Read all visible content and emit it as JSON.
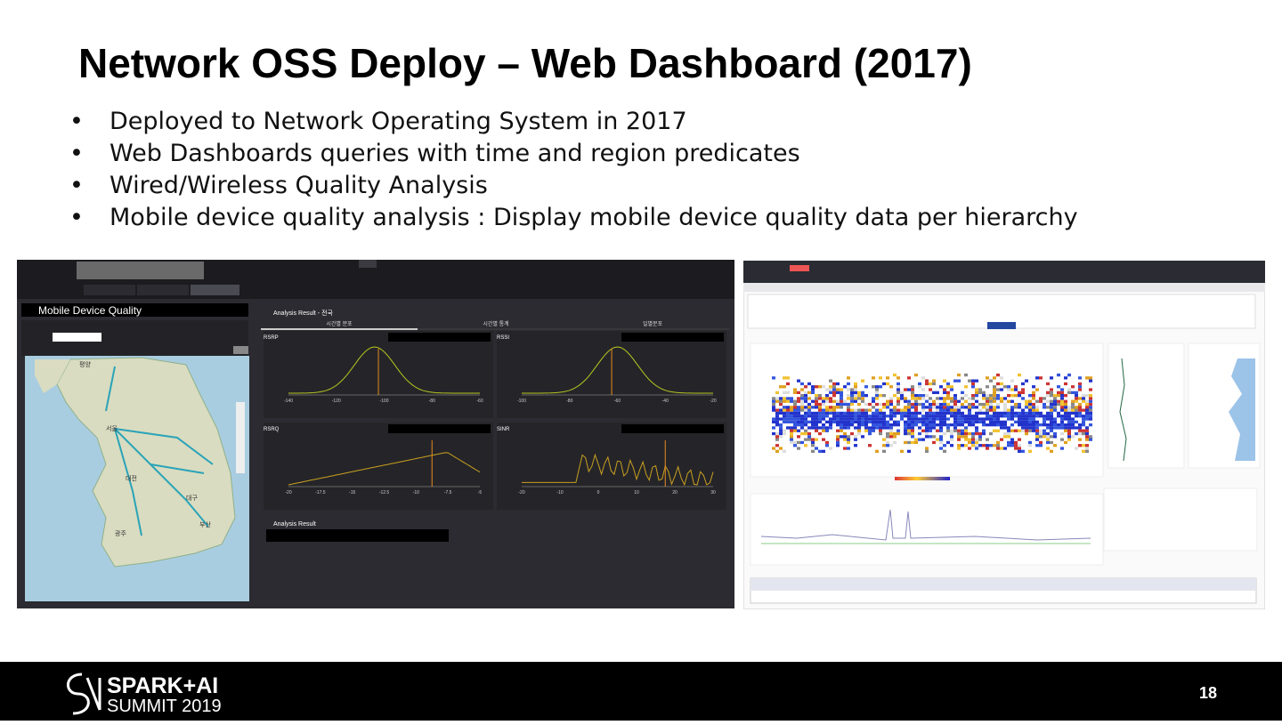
{
  "title": "Network OSS Deploy – Web Dashboard (2017)",
  "bullets": [
    "Deployed to Network Operating System in 2017",
    "Web Dashboards queries with time and region predicates",
    "Wired/Wireless Quality Analysis",
    "Mobile device quality analysis : Display mobile device quality data per hierarchy"
  ],
  "left_screen": {
    "panel_title": "Mobile Device Quality",
    "analysis_title": "Analysis Result - 전국",
    "tabs": [
      "시간별 분포",
      "시간별 통계",
      "일별분포"
    ],
    "charts": [
      {
        "name": "RSRP",
        "ticks": [
          "-140",
          "-120",
          "-100",
          "-80",
          "-60"
        ]
      },
      {
        "name": "RSSI",
        "ticks": [
          "-100",
          "-80",
          "-60",
          "-40",
          "-20"
        ]
      },
      {
        "name": "RSRQ",
        "ticks": [
          "-20",
          "-17.5",
          "-15",
          "-12.5",
          "-10",
          "-7.5",
          "-5"
        ]
      },
      {
        "name": "SINR",
        "ticks": [
          "-20",
          "-10",
          "0",
          "10",
          "20",
          "30"
        ]
      }
    ],
    "result_title": "Analysis Result",
    "map_labels": [
      "평양",
      "서울",
      "대전",
      "대구",
      "광주",
      "부산"
    ]
  },
  "footer": {
    "brand": "SPARK+AI",
    "event": "SUMMIT 2019",
    "page": "18"
  }
}
